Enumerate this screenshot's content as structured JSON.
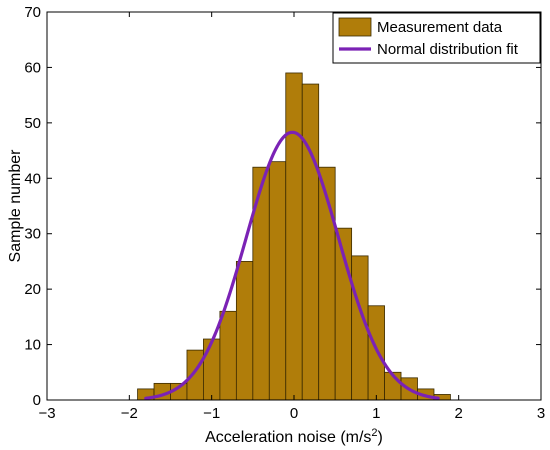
{
  "chart_data": {
    "type": "bar",
    "title": "",
    "xlabel": "Acceleration noise (m/s",
    "xlabel_superscript": "2",
    "xlabel_suffix": ")",
    "ylabel": "Sample number",
    "xlim": [
      -3,
      3
    ],
    "ylim": [
      0,
      70
    ],
    "x_ticks": [
      "−3",
      "−2",
      "−1",
      "0",
      "1",
      "2",
      "3"
    ],
    "x_tick_values": [
      -3,
      -2,
      -1,
      0,
      1,
      2,
      3
    ],
    "y_ticks": [
      "0",
      "10",
      "20",
      "30",
      "40",
      "50",
      "60",
      "70"
    ],
    "y_tick_values": [
      0,
      10,
      20,
      30,
      40,
      50,
      60,
      70
    ],
    "grid": false,
    "legend_position": "top-right",
    "series": [
      {
        "name": "Measurement data",
        "kind": "histogram",
        "color": "#b07d0a",
        "edge_color": "#3a2a00",
        "bin_width": 0.2,
        "bin_centers": [
          -1.8,
          -1.6,
          -1.4,
          -1.2,
          -1.0,
          -0.8,
          -0.6,
          -0.4,
          -0.2,
          0.0,
          0.2,
          0.4,
          0.6,
          0.8,
          1.0,
          1.2,
          1.4,
          1.6,
          1.8
        ],
        "values": [
          2,
          3,
          3,
          9,
          11,
          16,
          25,
          42,
          43,
          59,
          57,
          42,
          31,
          26,
          17,
          5,
          4,
          2,
          1
        ]
      },
      {
        "name": "Normal distribution fit",
        "kind": "line",
        "color": "#7b22b5",
        "mean": -0.02,
        "std": 0.56,
        "peak": 48.3,
        "x_range": [
          -1.8,
          1.75
        ]
      }
    ]
  }
}
